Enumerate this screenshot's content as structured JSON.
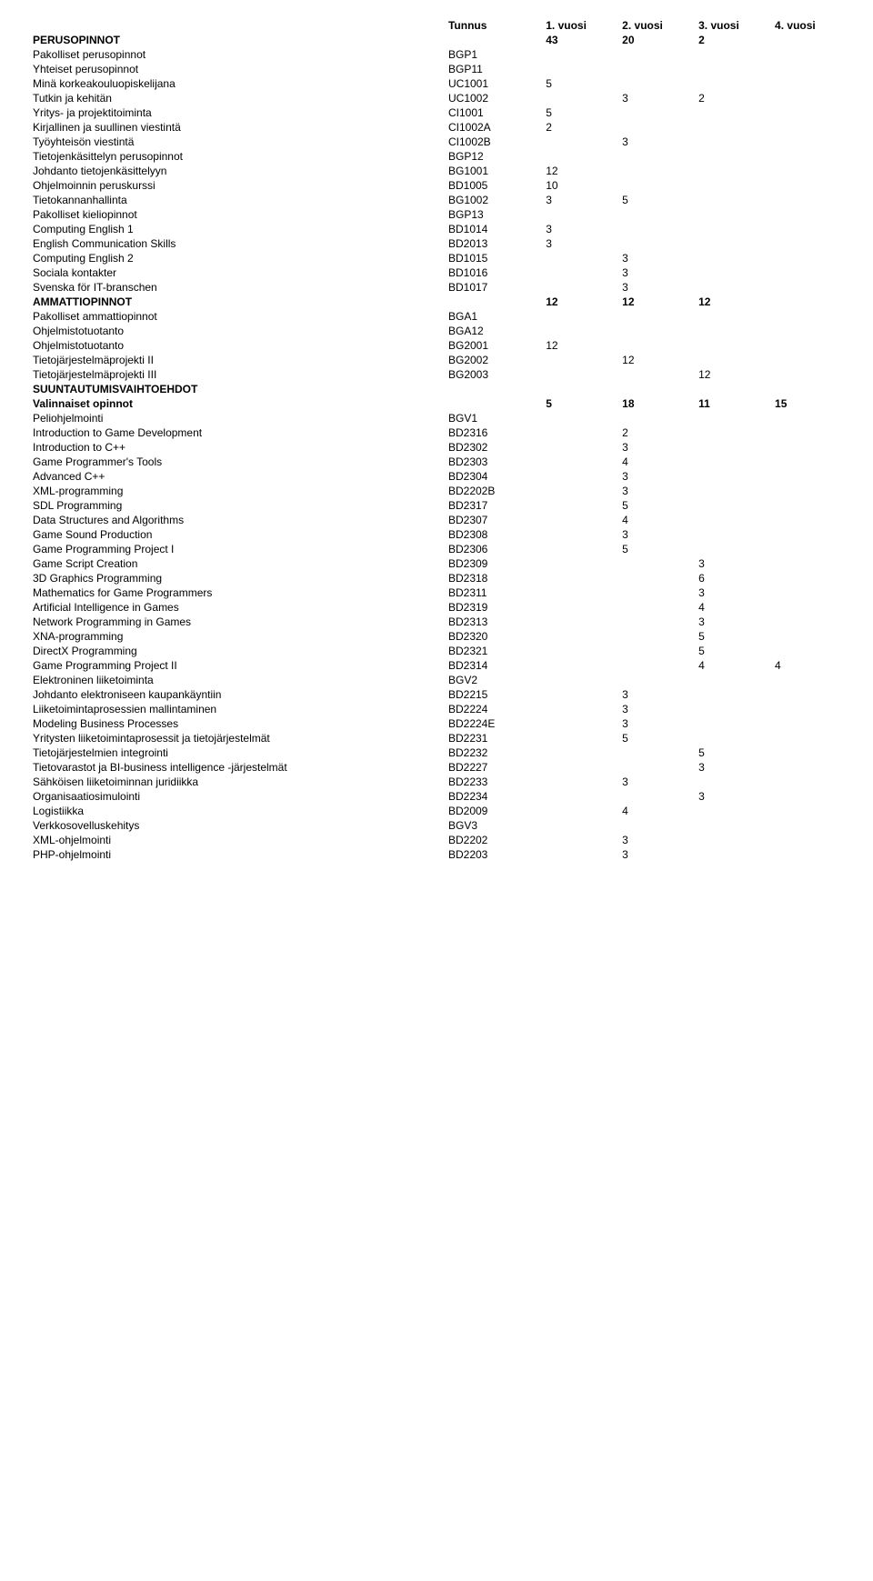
{
  "header": {
    "col0": "",
    "col1": "Tunnus",
    "col2": "1. vuosi",
    "col3": "2. vuosi",
    "col4": "3. vuosi",
    "col5": "4. vuosi"
  },
  "rows": [
    {
      "bold": true,
      "label": "PERUSOPINNOT",
      "code": "",
      "v1": "43",
      "v2": "20",
      "v3": "2",
      "v4": ""
    },
    {
      "bold": false,
      "label": "Pakolliset perusopinnot",
      "code": "BGP1",
      "v1": "",
      "v2": "",
      "v3": "",
      "v4": ""
    },
    {
      "bold": false,
      "label": "Yhteiset perusopinnot",
      "code": "BGP11",
      "v1": "",
      "v2": "",
      "v3": "",
      "v4": ""
    },
    {
      "bold": false,
      "label": "Minä korkeakouluopiskelijana",
      "code": "UC1001",
      "v1": "5",
      "v2": "",
      "v3": "",
      "v4": ""
    },
    {
      "bold": false,
      "label": "Tutkin ja kehitän",
      "code": "UC1002",
      "v1": "",
      "v2": "3",
      "v3": "2",
      "v4": ""
    },
    {
      "bold": false,
      "label": "Yritys- ja projektitoiminta",
      "code": "CI1001",
      "v1": "5",
      "v2": "",
      "v3": "",
      "v4": ""
    },
    {
      "bold": false,
      "label": "Kirjallinen ja suullinen viestintä",
      "code": "CI1002A",
      "v1": "2",
      "v2": "",
      "v3": "",
      "v4": ""
    },
    {
      "bold": false,
      "label": "Työyhteisön viestintä",
      "code": "CI1002B",
      "v1": "",
      "v2": "3",
      "v3": "",
      "v4": ""
    },
    {
      "bold": false,
      "label": "Tietojenkäsittelyn perusopinnot",
      "code": "BGP12",
      "v1": "",
      "v2": "",
      "v3": "",
      "v4": ""
    },
    {
      "bold": false,
      "label": "Johdanto tietojenkäsittelyyn",
      "code": "BG1001",
      "v1": "12",
      "v2": "",
      "v3": "",
      "v4": ""
    },
    {
      "bold": false,
      "label": "Ohjelmoinnin peruskurssi",
      "code": "BD1005",
      "v1": "10",
      "v2": "",
      "v3": "",
      "v4": ""
    },
    {
      "bold": false,
      "label": "Tietokannanhallinta",
      "code": "BG1002",
      "v1": "3",
      "v2": "5",
      "v3": "",
      "v4": ""
    },
    {
      "bold": false,
      "label": "Pakolliset kieliopinnot",
      "code": "BGP13",
      "v1": "",
      "v2": "",
      "v3": "",
      "v4": ""
    },
    {
      "bold": false,
      "label": "Computing English 1",
      "code": "BD1014",
      "v1": "3",
      "v2": "",
      "v3": "",
      "v4": ""
    },
    {
      "bold": false,
      "label": "English Communication Skills",
      "code": "BD2013",
      "v1": "3",
      "v2": "",
      "v3": "",
      "v4": ""
    },
    {
      "bold": false,
      "label": "Computing English 2",
      "code": "BD1015",
      "v1": "",
      "v2": "3",
      "v3": "",
      "v4": ""
    },
    {
      "bold": false,
      "label": "Sociala kontakter",
      "code": "BD1016",
      "v1": "",
      "v2": "3",
      "v3": "",
      "v4": ""
    },
    {
      "bold": false,
      "label": "Svenska för IT-branschen",
      "code": "BD1017",
      "v1": "",
      "v2": "3",
      "v3": "",
      "v4": ""
    },
    {
      "bold": true,
      "label": "AMMATTIOPINNOT",
      "code": "",
      "v1": "12",
      "v2": "12",
      "v3": "12",
      "v4": ""
    },
    {
      "bold": false,
      "label": "Pakolliset ammattiopinnot",
      "code": "BGA1",
      "v1": "",
      "v2": "",
      "v3": "",
      "v4": ""
    },
    {
      "bold": false,
      "label": "Ohjelmistotuotanto",
      "code": "BGA12",
      "v1": "",
      "v2": "",
      "v3": "",
      "v4": ""
    },
    {
      "bold": false,
      "label": "Ohjelmistotuotanto",
      "code": "BG2001",
      "v1": "12",
      "v2": "",
      "v3": "",
      "v4": ""
    },
    {
      "bold": false,
      "label": "Tietojärjestelmäprojekti II",
      "code": "BG2002",
      "v1": "",
      "v2": "12",
      "v3": "",
      "v4": ""
    },
    {
      "bold": false,
      "label": "Tietojärjestelmäprojekti III",
      "code": "BG2003",
      "v1": "",
      "v2": "",
      "v3": "12",
      "v4": ""
    },
    {
      "bold": true,
      "label": "SUUNTAUTUMISVAIHTOEHDOT",
      "code": "",
      "v1": "",
      "v2": "",
      "v3": "",
      "v4": ""
    },
    {
      "bold": true,
      "label": "Valinnaiset opinnot",
      "code": "",
      "v1": "5",
      "v2": "18",
      "v3": "11",
      "v4": "15"
    },
    {
      "bold": false,
      "label": "Peliohjelmointi",
      "code": "BGV1",
      "v1": "",
      "v2": "",
      "v3": "",
      "v4": ""
    },
    {
      "bold": false,
      "label": "Introduction to Game Development",
      "code": "BD2316",
      "v1": "",
      "v2": "2",
      "v3": "",
      "v4": ""
    },
    {
      "bold": false,
      "label": "Introduction to C++",
      "code": "BD2302",
      "v1": "",
      "v2": "3",
      "v3": "",
      "v4": ""
    },
    {
      "bold": false,
      "label": "Game Programmer's Tools",
      "code": "BD2303",
      "v1": "",
      "v2": "4",
      "v3": "",
      "v4": ""
    },
    {
      "bold": false,
      "label": "Advanced C++",
      "code": "BD2304",
      "v1": "",
      "v2": "3",
      "v3": "",
      "v4": ""
    },
    {
      "bold": false,
      "label": "XML-programming",
      "code": "BD2202B",
      "v1": "",
      "v2": "3",
      "v3": "",
      "v4": ""
    },
    {
      "bold": false,
      "label": "SDL Programming",
      "code": "BD2317",
      "v1": "",
      "v2": "5",
      "v3": "",
      "v4": ""
    },
    {
      "bold": false,
      "label": "Data Structures and Algorithms",
      "code": "BD2307",
      "v1": "",
      "v2": "4",
      "v3": "",
      "v4": ""
    },
    {
      "bold": false,
      "label": "Game Sound Production",
      "code": "BD2308",
      "v1": "",
      "v2": "3",
      "v3": "",
      "v4": ""
    },
    {
      "bold": false,
      "label": "Game Programming Project I",
      "code": "BD2306",
      "v1": "",
      "v2": "5",
      "v3": "",
      "v4": ""
    },
    {
      "bold": false,
      "label": "Game Script Creation",
      "code": "BD2309",
      "v1": "",
      "v2": "",
      "v3": "3",
      "v4": ""
    },
    {
      "bold": false,
      "label": "3D Graphics Programming",
      "code": "BD2318",
      "v1": "",
      "v2": "",
      "v3": "6",
      "v4": ""
    },
    {
      "bold": false,
      "label": "Mathematics for Game Programmers",
      "code": "BD2311",
      "v1": "",
      "v2": "",
      "v3": "3",
      "v4": ""
    },
    {
      "bold": false,
      "label": "Artificial Intelligence in Games",
      "code": "BD2319",
      "v1": "",
      "v2": "",
      "v3": "4",
      "v4": ""
    },
    {
      "bold": false,
      "label": "Network Programming in Games",
      "code": "BD2313",
      "v1": "",
      "v2": "",
      "v3": "3",
      "v4": ""
    },
    {
      "bold": false,
      "label": "XNA-programming",
      "code": "BD2320",
      "v1": "",
      "v2": "",
      "v3": "5",
      "v4": ""
    },
    {
      "bold": false,
      "label": "DirectX Programming",
      "code": "BD2321",
      "v1": "",
      "v2": "",
      "v3": "5",
      "v4": ""
    },
    {
      "bold": false,
      "label": "Game Programming Project II",
      "code": "BD2314",
      "v1": "",
      "v2": "",
      "v3": "4",
      "v4": "4"
    },
    {
      "bold": false,
      "label": "Elektroninen liiketoiminta",
      "code": "BGV2",
      "v1": "",
      "v2": "",
      "v3": "",
      "v4": ""
    },
    {
      "bold": false,
      "label": "Johdanto elektroniseen kaupankäyntiin",
      "code": "BD2215",
      "v1": "",
      "v2": "3",
      "v3": "",
      "v4": ""
    },
    {
      "bold": false,
      "label": "Liiketoimintaprosessien mallintaminen",
      "code": "BD2224",
      "v1": "",
      "v2": "3",
      "v3": "",
      "v4": ""
    },
    {
      "bold": false,
      "label": "Modeling Business Processes",
      "code": "BD2224E",
      "v1": "",
      "v2": "3",
      "v3": "",
      "v4": ""
    },
    {
      "bold": false,
      "label": "Yritysten liiketoimintaprosessit ja tietojärjestelmät",
      "code": "BD2231",
      "v1": "",
      "v2": "5",
      "v3": "",
      "v4": ""
    },
    {
      "bold": false,
      "label": "Tietojärjestelmien integrointi",
      "code": "BD2232",
      "v1": "",
      "v2": "",
      "v3": "5",
      "v4": ""
    },
    {
      "bold": false,
      "label": "Tietovarastot ja BI-business intelligence -järjestelmät",
      "code": "BD2227",
      "v1": "",
      "v2": "",
      "v3": "3",
      "v4": ""
    },
    {
      "bold": false,
      "label": "Sähköisen liiketoiminnan juridiikka",
      "code": "BD2233",
      "v1": "",
      "v2": "3",
      "v3": "",
      "v4": ""
    },
    {
      "bold": false,
      "label": "Organisaatiosimulointi",
      "code": "BD2234",
      "v1": "",
      "v2": "",
      "v3": "3",
      "v4": ""
    },
    {
      "bold": false,
      "label": "Logistiikka",
      "code": "BD2009",
      "v1": "",
      "v2": "4",
      "v3": "",
      "v4": ""
    },
    {
      "bold": false,
      "label": "Verkkosovelluskehitys",
      "code": "BGV3",
      "v1": "",
      "v2": "",
      "v3": "",
      "v4": ""
    },
    {
      "bold": false,
      "label": "XML-ohjelmointi",
      "code": "BD2202",
      "v1": "",
      "v2": "3",
      "v3": "",
      "v4": ""
    },
    {
      "bold": false,
      "label": "PHP-ohjelmointi",
      "code": "BD2203",
      "v1": "",
      "v2": "3",
      "v3": "",
      "v4": ""
    }
  ]
}
